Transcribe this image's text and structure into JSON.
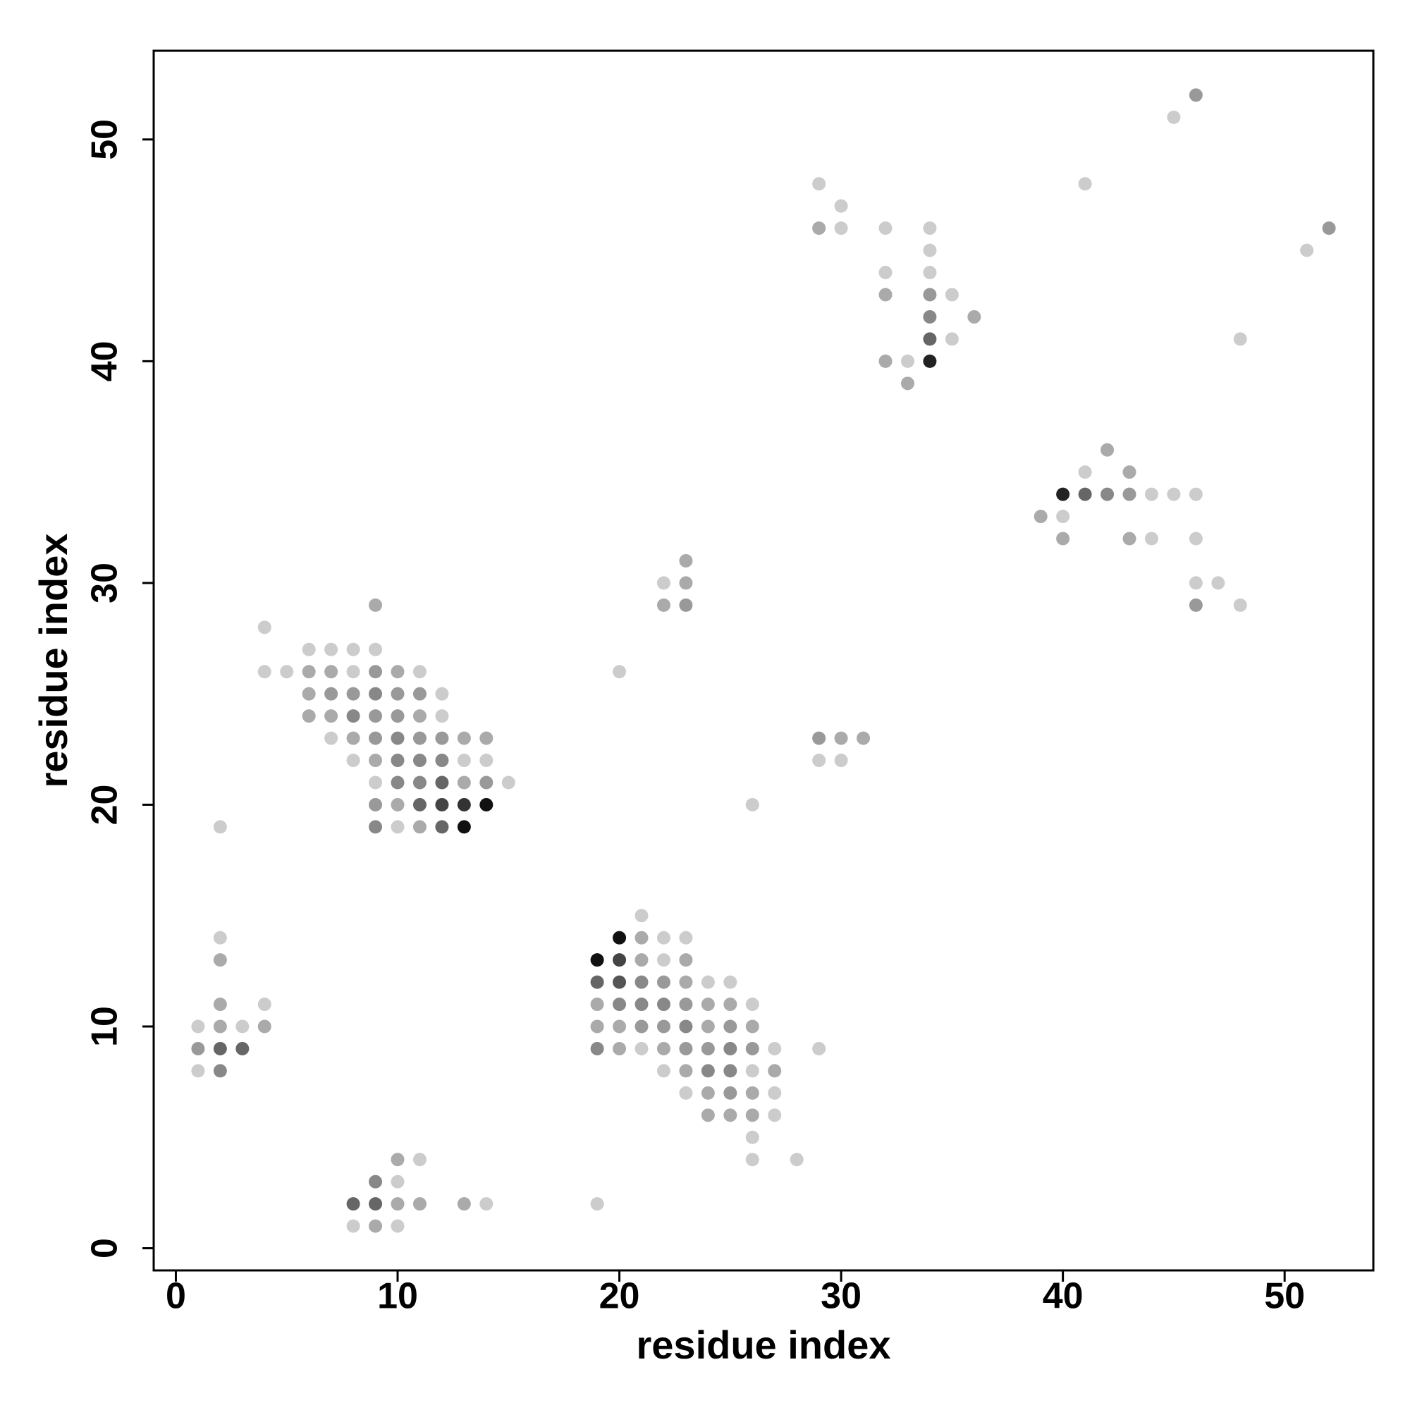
{
  "chart_data": {
    "type": "scatter",
    "xlabel": "residue index",
    "ylabel": "residue index",
    "xlim": [
      -1,
      54
    ],
    "ylim": [
      -1,
      54
    ],
    "xticks": [
      0,
      10,
      20,
      30,
      40,
      50
    ],
    "yticks": [
      0,
      10,
      20,
      30,
      40,
      50
    ],
    "x": [
      46,
      45,
      41,
      52,
      51,
      48,
      29,
      30,
      29,
      30,
      32,
      34,
      34,
      32,
      34,
      32,
      34,
      35,
      34,
      36,
      34,
      35,
      32,
      33,
      34,
      33,
      42,
      41,
      43,
      40,
      41,
      42,
      43,
      44,
      45,
      46,
      39,
      40,
      40,
      43,
      44,
      46,
      46,
      47,
      46,
      48,
      23,
      22,
      23,
      22,
      23,
      20,
      26,
      29,
      30,
      31,
      29,
      30,
      29,
      9,
      4,
      6,
      7,
      8,
      9,
      4,
      5,
      6,
      7,
      8,
      9,
      10,
      11,
      6,
      7,
      8,
      9,
      10,
      11,
      12,
      6,
      7,
      8,
      9,
      10,
      11,
      12,
      7,
      8,
      9,
      10,
      11,
      12,
      13,
      14,
      8,
      9,
      10,
      11,
      12,
      13,
      14,
      9,
      10,
      11,
      12,
      13,
      14,
      15,
      9,
      10,
      11,
      12,
      13,
      14,
      2,
      9,
      10,
      11,
      12,
      13,
      2,
      2,
      2,
      4,
      1,
      2,
      3,
      4,
      1,
      2,
      3,
      1,
      2,
      10,
      11,
      9,
      10,
      8,
      9,
      10,
      11,
      13,
      14,
      19,
      8,
      9,
      10,
      21,
      20,
      21,
      22,
      23,
      19,
      20,
      21,
      22,
      23,
      19,
      20,
      21,
      22,
      23,
      24,
      25,
      19,
      20,
      21,
      22,
      23,
      24,
      25,
      26,
      19,
      20,
      21,
      22,
      23,
      24,
      25,
      26,
      19,
      20,
      21,
      22,
      23,
      24,
      25,
      26,
      27,
      22,
      23,
      24,
      25,
      26,
      27,
      23,
      24,
      25,
      26,
      27,
      24,
      25,
      26,
      27,
      26,
      26,
      28
    ],
    "values": [
      52,
      51,
      48,
      46,
      45,
      41,
      48,
      47,
      46,
      46,
      46,
      46,
      45,
      44,
      44,
      43,
      43,
      43,
      42,
      42,
      41,
      41,
      40,
      40,
      40,
      39,
      36,
      35,
      35,
      34,
      34,
      34,
      34,
      34,
      34,
      34,
      33,
      33,
      32,
      32,
      32,
      32,
      30,
      30,
      29,
      29,
      31,
      30,
      30,
      29,
      29,
      26,
      20,
      23,
      23,
      23,
      22,
      22,
      9,
      29,
      28,
      27,
      27,
      27,
      27,
      26,
      26,
      26,
      26,
      26,
      26,
      26,
      26,
      25,
      25,
      25,
      25,
      25,
      25,
      25,
      24,
      24,
      24,
      24,
      24,
      24,
      24,
      23,
      23,
      23,
      23,
      23,
      23,
      23,
      23,
      22,
      22,
      22,
      22,
      22,
      22,
      22,
      21,
      21,
      21,
      21,
      21,
      21,
      21,
      20,
      20,
      20,
      20,
      20,
      20,
      19,
      19,
      19,
      19,
      19,
      19,
      14,
      13,
      11,
      11,
      10,
      10,
      10,
      10,
      9,
      9,
      9,
      8,
      8,
      4,
      4,
      3,
      3,
      2,
      2,
      2,
      2,
      2,
      2,
      2,
      1,
      1,
      1,
      15,
      14,
      14,
      14,
      14,
      13,
      13,
      13,
      13,
      13,
      12,
      12,
      12,
      12,
      12,
      12,
      12,
      11,
      11,
      11,
      11,
      11,
      11,
      11,
      11,
      10,
      10,
      10,
      10,
      10,
      10,
      10,
      10,
      9,
      9,
      9,
      9,
      9,
      9,
      9,
      9,
      9,
      8,
      8,
      8,
      8,
      8,
      8,
      7,
      7,
      7,
      7,
      7,
      6,
      6,
      6,
      6,
      5,
      4,
      4
    ],
    "colors": [
      "#999",
      "#ccc",
      "#ccc",
      "#999",
      "#ccc",
      "#ccc",
      "#ccc",
      "#ccc",
      "#aaa",
      "#ccc",
      "#ccc",
      "#ccc",
      "#ccc",
      "#ccc",
      "#ccc",
      "#aaa",
      "#999",
      "#ccc",
      "#888",
      "#aaa",
      "#666",
      "#ccc",
      "#aaa",
      "#ccc",
      "#222",
      "#aaa",
      "#aaa",
      "#ccc",
      "#aaa",
      "#222",
      "#666",
      "#888",
      "#999",
      "#ccc",
      "#ccc",
      "#ccc",
      "#aaa",
      "#ccc",
      "#aaa",
      "#aaa",
      "#ccc",
      "#ccc",
      "#ccc",
      "#ccc",
      "#999",
      "#ccc",
      "#aaa",
      "#ccc",
      "#aaa",
      "#aaa",
      "#999",
      "#ccc",
      "#ccc",
      "#999",
      "#aaa",
      "#aaa",
      "#ccc",
      "#ccc",
      "#ccc",
      "#aaa",
      "#ccc",
      "#ccc",
      "#ccc",
      "#ccc",
      "#ccc",
      "#ccc",
      "#ccc",
      "#aaa",
      "#aaa",
      "#ccc",
      "#999",
      "#aaa",
      "#ccc",
      "#aaa",
      "#999",
      "#999",
      "#888",
      "#999",
      "#999",
      "#ccc",
      "#aaa",
      "#aaa",
      "#888",
      "#999",
      "#999",
      "#aaa",
      "#ccc",
      "#ccc",
      "#aaa",
      "#999",
      "#888",
      "#999",
      "#999",
      "#aaa",
      "#aaa",
      "#ccc",
      "#aaa",
      "#888",
      "#888",
      "#888",
      "#ccc",
      "#ccc",
      "#ccc",
      "#888",
      "#888",
      "#666",
      "#aaa",
      "#999",
      "#ccc",
      "#999",
      "#aaa",
      "#666",
      "#444",
      "#333",
      "#111",
      "#ccc",
      "#888",
      "#ccc",
      "#aaa",
      "#666",
      "#111",
      "#ccc",
      "#aaa",
      "#aaa",
      "#ccc",
      "#ccc",
      "#aaa",
      "#ccc",
      "#aaa",
      "#999",
      "#666",
      "#666",
      "#ccc",
      "#888",
      "#aaa",
      "#ccc",
      "#888",
      "#ccc",
      "#666",
      "#666",
      "#aaa",
      "#aaa",
      "#aaa",
      "#ccc",
      "#ccc",
      "#ccc",
      "#aaa",
      "#ccc",
      "#ccc",
      "#111",
      "#aaa",
      "#ccc",
      "#ccc",
      "#111",
      "#444",
      "#aaa",
      "#ccc",
      "#aaa",
      "#666",
      "#555",
      "#888",
      "#999",
      "#aaa",
      "#ccc",
      "#ccc",
      "#aaa",
      "#888",
      "#888",
      "#888",
      "#999",
      "#aaa",
      "#aaa",
      "#ccc",
      "#aaa",
      "#aaa",
      "#999",
      "#999",
      "#888",
      "#aaa",
      "#999",
      "#aaa",
      "#888",
      "#aaa",
      "#ccc",
      "#aaa",
      "#999",
      "#999",
      "#888",
      "#999",
      "#ccc",
      "#ccc",
      "#aaa",
      "#888",
      "#888",
      "#ccc",
      "#aaa",
      "#ccc",
      "#aaa",
      "#999",
      "#aaa",
      "#ccc",
      "#aaa",
      "#aaa",
      "#aaa",
      "#ccc",
      "#ccc",
      "#ccc",
      "#ccc"
    ]
  }
}
